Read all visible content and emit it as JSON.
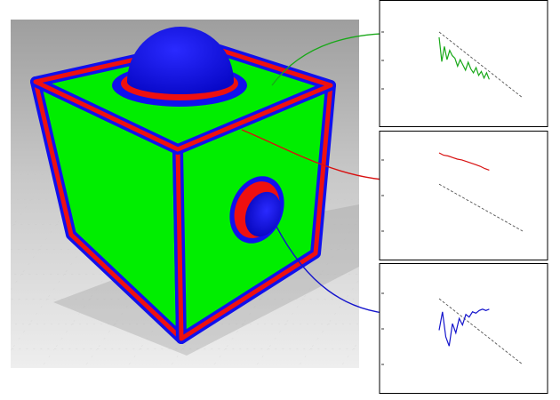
{
  "colors": {
    "face": "#00ee00",
    "band": "#1010ee",
    "edge": "#ee1010",
    "sphere": "#0a0ae6",
    "floor": "#dcdedc",
    "backdrop": "#b8b8b8",
    "line_green": "#18a818",
    "line_red": "#d81010",
    "line_blue": "#1414cc",
    "reference": "#555555"
  },
  "chart_data": [
    {
      "type": "line",
      "series": [
        {
          "color": "green",
          "values": [
            0.92,
            0.55,
            0.78,
            0.58,
            0.72,
            0.64,
            0.6,
            0.48,
            0.58,
            0.5,
            0.42,
            0.54,
            0.44,
            0.38,
            0.46,
            0.34,
            0.4,
            0.3,
            0.38,
            0.28
          ]
        }
      ],
      "reference_line": [
        1.0,
        0.0
      ]
    },
    {
      "type": "line",
      "series": [
        {
          "color": "red",
          "values": [
            1.0,
            0.97,
            0.96,
            0.94,
            0.92,
            0.91,
            0.89,
            0.87,
            0.85,
            0.83,
            0.8,
            0.78
          ]
        }
      ],
      "reference_line": [
        0.6,
        0.0
      ]
    },
    {
      "type": "line",
      "series": [
        {
          "color": "blue",
          "values": [
            0.52,
            0.8,
            0.42,
            0.28,
            0.62,
            0.48,
            0.7,
            0.6,
            0.76,
            0.72,
            0.8,
            0.78,
            0.82,
            0.84,
            0.82,
            0.84
          ]
        }
      ],
      "reference_line": [
        1.0,
        0.0
      ]
    }
  ]
}
